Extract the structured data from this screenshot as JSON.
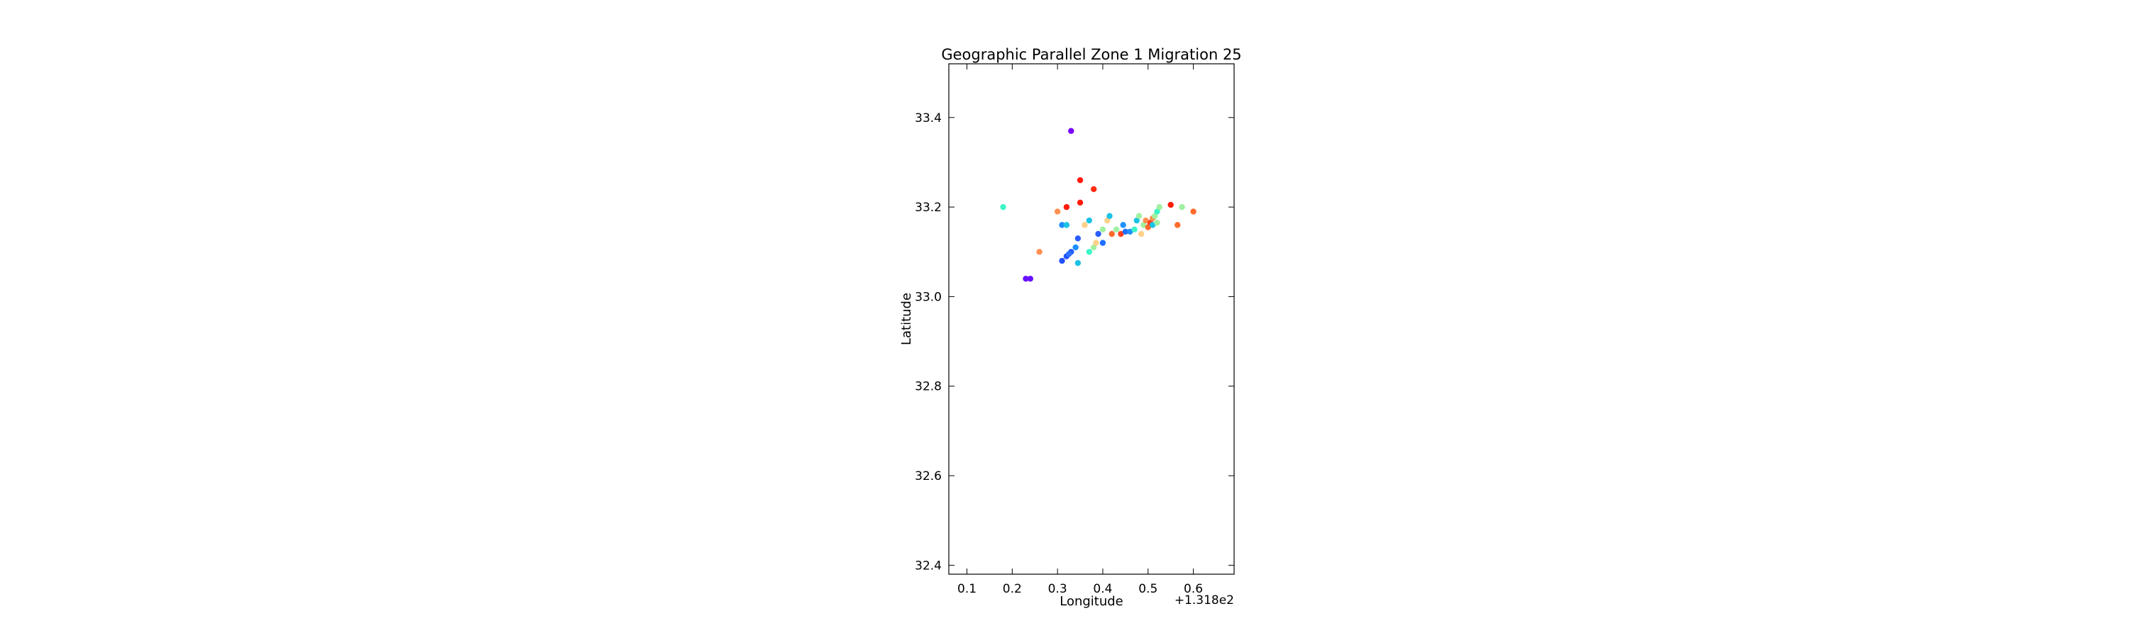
{
  "chart_data": {
    "type": "scatter",
    "title": "Geographic Parallel Zone 1 Migration 25",
    "xlabel": "Longitude",
    "ylabel": "Latitude",
    "x_offset_label": "+1.318e2",
    "xlim": [
      0.06,
      0.69
    ],
    "ylim": [
      32.38,
      33.52
    ],
    "x_ticks": [
      {
        "value": 0.1,
        "label": "0.1"
      },
      {
        "value": 0.2,
        "label": "0.2"
      },
      {
        "value": 0.3,
        "label": "0.3"
      },
      {
        "value": 0.4,
        "label": "0.4"
      },
      {
        "value": 0.5,
        "label": "0.5"
      },
      {
        "value": 0.6,
        "label": "0.6"
      }
    ],
    "y_ticks": [
      {
        "value": 32.4,
        "label": "32.4"
      },
      {
        "value": 32.6,
        "label": "32.6"
      },
      {
        "value": 32.8,
        "label": "32.8"
      },
      {
        "value": 33.0,
        "label": "33.0"
      },
      {
        "value": 33.2,
        "label": "33.2"
      },
      {
        "value": 33.4,
        "label": "33.4"
      }
    ],
    "grid": false,
    "points": [
      {
        "x": 0.33,
        "y": 33.37,
        "color": "#7a00ff"
      },
      {
        "x": 0.23,
        "y": 33.04,
        "color": "#6a10ff"
      },
      {
        "x": 0.24,
        "y": 33.04,
        "color": "#6a10ff"
      },
      {
        "x": 0.18,
        "y": 33.2,
        "color": "#3cf5c8"
      },
      {
        "x": 0.26,
        "y": 33.1,
        "color": "#ff9050"
      },
      {
        "x": 0.3,
        "y": 33.19,
        "color": "#ff9050"
      },
      {
        "x": 0.32,
        "y": 33.2,
        "color": "#ff1a0a"
      },
      {
        "x": 0.31,
        "y": 33.16,
        "color": "#1e8cff"
      },
      {
        "x": 0.32,
        "y": 33.16,
        "color": "#19c3e6"
      },
      {
        "x": 0.35,
        "y": 33.26,
        "color": "#ff1a0a"
      },
      {
        "x": 0.38,
        "y": 33.24,
        "color": "#ff2a10"
      },
      {
        "x": 0.35,
        "y": 33.21,
        "color": "#ff1a0a"
      },
      {
        "x": 0.31,
        "y": 33.08,
        "color": "#2050ff"
      },
      {
        "x": 0.32,
        "y": 33.09,
        "color": "#2050ff"
      },
      {
        "x": 0.33,
        "y": 33.1,
        "color": "#2060ff"
      },
      {
        "x": 0.325,
        "y": 33.095,
        "color": "#3070ff"
      },
      {
        "x": 0.34,
        "y": 33.11,
        "color": "#1e90ff"
      },
      {
        "x": 0.345,
        "y": 33.13,
        "color": "#2a5cff"
      },
      {
        "x": 0.345,
        "y": 33.075,
        "color": "#19c3e6"
      },
      {
        "x": 0.36,
        "y": 33.16,
        "color": "#ffd088"
      },
      {
        "x": 0.37,
        "y": 33.1,
        "color": "#3cf5c8"
      },
      {
        "x": 0.37,
        "y": 33.17,
        "color": "#19c3e6"
      },
      {
        "x": 0.38,
        "y": 33.11,
        "color": "#a0f0a0"
      },
      {
        "x": 0.385,
        "y": 33.12,
        "color": "#ffd088"
      },
      {
        "x": 0.39,
        "y": 33.14,
        "color": "#2a5cff"
      },
      {
        "x": 0.4,
        "y": 33.12,
        "color": "#1e70ff"
      },
      {
        "x": 0.4,
        "y": 33.15,
        "color": "#a0f0a0"
      },
      {
        "x": 0.41,
        "y": 33.17,
        "color": "#ffd088"
      },
      {
        "x": 0.415,
        "y": 33.18,
        "color": "#19c3e6"
      },
      {
        "x": 0.42,
        "y": 33.14,
        "color": "#ff6a2a"
      },
      {
        "x": 0.43,
        "y": 33.15,
        "color": "#a0f0a0"
      },
      {
        "x": 0.44,
        "y": 33.14,
        "color": "#ff4020"
      },
      {
        "x": 0.445,
        "y": 33.16,
        "color": "#2090ff"
      },
      {
        "x": 0.45,
        "y": 33.145,
        "color": "#1e70ff"
      },
      {
        "x": 0.46,
        "y": 33.145,
        "color": "#1e90ff"
      },
      {
        "x": 0.47,
        "y": 33.15,
        "color": "#3cf5c8"
      },
      {
        "x": 0.475,
        "y": 33.17,
        "color": "#19c3e6"
      },
      {
        "x": 0.48,
        "y": 33.18,
        "color": "#a0f0a0"
      },
      {
        "x": 0.485,
        "y": 33.14,
        "color": "#ffd088"
      },
      {
        "x": 0.49,
        "y": 33.16,
        "color": "#a0f0a0"
      },
      {
        "x": 0.495,
        "y": 33.17,
        "color": "#ff9050"
      },
      {
        "x": 0.5,
        "y": 33.155,
        "color": "#ff6a2a"
      },
      {
        "x": 0.505,
        "y": 33.165,
        "color": "#ff4020"
      },
      {
        "x": 0.51,
        "y": 33.16,
        "color": "#19c3e6"
      },
      {
        "x": 0.51,
        "y": 33.175,
        "color": "#ff9050"
      },
      {
        "x": 0.515,
        "y": 33.18,
        "color": "#a0f0a0"
      },
      {
        "x": 0.52,
        "y": 33.19,
        "color": "#3cf5c8"
      },
      {
        "x": 0.525,
        "y": 33.2,
        "color": "#a0f0a0"
      },
      {
        "x": 0.52,
        "y": 33.165,
        "color": "#a0f0a0"
      },
      {
        "x": 0.55,
        "y": 33.205,
        "color": "#ff1a0a"
      },
      {
        "x": 0.565,
        "y": 33.16,
        "color": "#ff6a2a"
      },
      {
        "x": 0.575,
        "y": 33.2,
        "color": "#a0f0a0"
      },
      {
        "x": 0.6,
        "y": 33.19,
        "color": "#ff6a2a"
      }
    ]
  }
}
